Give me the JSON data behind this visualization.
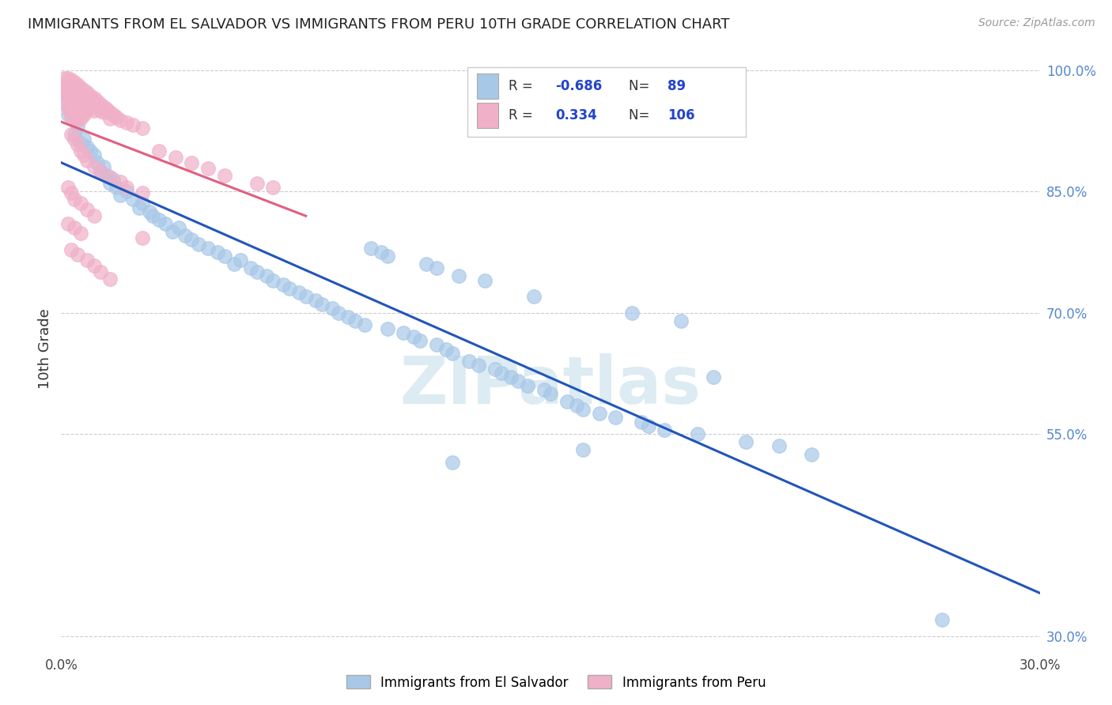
{
  "title": "IMMIGRANTS FROM EL SALVADOR VS IMMIGRANTS FROM PERU 10TH GRADE CORRELATION CHART",
  "source": "Source: ZipAtlas.com",
  "ylabel": "10th Grade",
  "xlim": [
    0.0,
    0.3
  ],
  "ylim": [
    0.28,
    1.03
  ],
  "yticks": [
    0.3,
    0.55,
    0.7,
    0.85,
    1.0
  ],
  "yticklabels": [
    "30.0%",
    "55.0%",
    "70.0%",
    "85.0%",
    "100.0%"
  ],
  "blue_color": "#a8c8e8",
  "pink_color": "#f0b0c8",
  "blue_line_color": "#2255bb",
  "pink_line_color": "#e06080",
  "R_blue": -0.686,
  "N_blue": 89,
  "R_pink": 0.334,
  "N_pink": 106,
  "legend_label_blue": "Immigrants from El Salvador",
  "legend_label_pink": "Immigrants from Peru",
  "watermark": "ZIPatlas",
  "blue_scatter": [
    [
      0.001,
      0.96
    ],
    [
      0.002,
      0.945
    ],
    [
      0.003,
      0.95
    ],
    [
      0.004,
      0.92
    ],
    [
      0.005,
      0.93
    ],
    [
      0.006,
      0.91
    ],
    [
      0.007,
      0.915
    ],
    [
      0.008,
      0.905
    ],
    [
      0.009,
      0.9
    ],
    [
      0.01,
      0.895
    ],
    [
      0.011,
      0.885
    ],
    [
      0.012,
      0.875
    ],
    [
      0.013,
      0.88
    ],
    [
      0.014,
      0.87
    ],
    [
      0.015,
      0.86
    ],
    [
      0.016,
      0.865
    ],
    [
      0.017,
      0.855
    ],
    [
      0.018,
      0.845
    ],
    [
      0.02,
      0.85
    ],
    [
      0.022,
      0.84
    ],
    [
      0.024,
      0.83
    ],
    [
      0.025,
      0.835
    ],
    [
      0.027,
      0.825
    ],
    [
      0.028,
      0.82
    ],
    [
      0.03,
      0.815
    ],
    [
      0.032,
      0.81
    ],
    [
      0.034,
      0.8
    ],
    [
      0.036,
      0.805
    ],
    [
      0.038,
      0.795
    ],
    [
      0.04,
      0.79
    ],
    [
      0.042,
      0.785
    ],
    [
      0.045,
      0.78
    ],
    [
      0.048,
      0.775
    ],
    [
      0.05,
      0.77
    ],
    [
      0.053,
      0.76
    ],
    [
      0.055,
      0.765
    ],
    [
      0.058,
      0.755
    ],
    [
      0.06,
      0.75
    ],
    [
      0.063,
      0.745
    ],
    [
      0.065,
      0.74
    ],
    [
      0.068,
      0.735
    ],
    [
      0.07,
      0.73
    ],
    [
      0.073,
      0.725
    ],
    [
      0.075,
      0.72
    ],
    [
      0.078,
      0.715
    ],
    [
      0.08,
      0.71
    ],
    [
      0.083,
      0.705
    ],
    [
      0.085,
      0.7
    ],
    [
      0.088,
      0.695
    ],
    [
      0.09,
      0.69
    ],
    [
      0.093,
      0.685
    ],
    [
      0.095,
      0.78
    ],
    [
      0.098,
      0.775
    ],
    [
      0.1,
      0.77
    ],
    [
      0.1,
      0.68
    ],
    [
      0.105,
      0.675
    ],
    [
      0.108,
      0.67
    ],
    [
      0.11,
      0.665
    ],
    [
      0.112,
      0.76
    ],
    [
      0.115,
      0.755
    ],
    [
      0.115,
      0.66
    ],
    [
      0.118,
      0.655
    ],
    [
      0.12,
      0.65
    ],
    [
      0.122,
      0.745
    ],
    [
      0.125,
      0.64
    ],
    [
      0.128,
      0.635
    ],
    [
      0.13,
      0.74
    ],
    [
      0.133,
      0.63
    ],
    [
      0.135,
      0.625
    ],
    [
      0.138,
      0.62
    ],
    [
      0.14,
      0.615
    ],
    [
      0.143,
      0.61
    ],
    [
      0.145,
      0.72
    ],
    [
      0.148,
      0.605
    ],
    [
      0.15,
      0.6
    ],
    [
      0.155,
      0.59
    ],
    [
      0.158,
      0.585
    ],
    [
      0.16,
      0.58
    ],
    [
      0.165,
      0.575
    ],
    [
      0.17,
      0.57
    ],
    [
      0.175,
      0.7
    ],
    [
      0.178,
      0.565
    ],
    [
      0.18,
      0.56
    ],
    [
      0.185,
      0.555
    ],
    [
      0.19,
      0.69
    ],
    [
      0.195,
      0.55
    ],
    [
      0.2,
      0.62
    ],
    [
      0.21,
      0.54
    ],
    [
      0.22,
      0.535
    ],
    [
      0.16,
      0.53
    ],
    [
      0.23,
      0.525
    ],
    [
      0.12,
      0.515
    ],
    [
      0.27,
      0.32
    ]
  ],
  "pink_scatter": [
    [
      0.001,
      0.99
    ],
    [
      0.001,
      0.98
    ],
    [
      0.001,
      0.97
    ],
    [
      0.002,
      0.99
    ],
    [
      0.002,
      0.982
    ],
    [
      0.002,
      0.975
    ],
    [
      0.002,
      0.968
    ],
    [
      0.002,
      0.96
    ],
    [
      0.002,
      0.952
    ],
    [
      0.003,
      0.988
    ],
    [
      0.003,
      0.98
    ],
    [
      0.003,
      0.972
    ],
    [
      0.003,
      0.965
    ],
    [
      0.003,
      0.957
    ],
    [
      0.003,
      0.95
    ],
    [
      0.003,
      0.942
    ],
    [
      0.004,
      0.985
    ],
    [
      0.004,
      0.978
    ],
    [
      0.004,
      0.97
    ],
    [
      0.004,
      0.963
    ],
    [
      0.004,
      0.955
    ],
    [
      0.004,
      0.948
    ],
    [
      0.004,
      0.94
    ],
    [
      0.005,
      0.982
    ],
    [
      0.005,
      0.975
    ],
    [
      0.005,
      0.967
    ],
    [
      0.005,
      0.96
    ],
    [
      0.005,
      0.952
    ],
    [
      0.005,
      0.945
    ],
    [
      0.005,
      0.938
    ],
    [
      0.006,
      0.978
    ],
    [
      0.006,
      0.97
    ],
    [
      0.006,
      0.963
    ],
    [
      0.006,
      0.955
    ],
    [
      0.006,
      0.948
    ],
    [
      0.006,
      0.94
    ],
    [
      0.007,
      0.975
    ],
    [
      0.007,
      0.968
    ],
    [
      0.007,
      0.96
    ],
    [
      0.007,
      0.953
    ],
    [
      0.007,
      0.945
    ],
    [
      0.008,
      0.972
    ],
    [
      0.008,
      0.965
    ],
    [
      0.008,
      0.958
    ],
    [
      0.008,
      0.95
    ],
    [
      0.009,
      0.968
    ],
    [
      0.009,
      0.96
    ],
    [
      0.009,
      0.953
    ],
    [
      0.01,
      0.965
    ],
    [
      0.01,
      0.958
    ],
    [
      0.01,
      0.95
    ],
    [
      0.011,
      0.962
    ],
    [
      0.011,
      0.955
    ],
    [
      0.012,
      0.958
    ],
    [
      0.012,
      0.95
    ],
    [
      0.013,
      0.955
    ],
    [
      0.013,
      0.948
    ],
    [
      0.014,
      0.952
    ],
    [
      0.015,
      0.948
    ],
    [
      0.015,
      0.94
    ],
    [
      0.016,
      0.945
    ],
    [
      0.017,
      0.942
    ],
    [
      0.018,
      0.938
    ],
    [
      0.02,
      0.935
    ],
    [
      0.022,
      0.932
    ],
    [
      0.025,
      0.928
    ],
    [
      0.003,
      0.92
    ],
    [
      0.004,
      0.915
    ],
    [
      0.005,
      0.908
    ],
    [
      0.006,
      0.9
    ],
    [
      0.007,
      0.895
    ],
    [
      0.008,
      0.888
    ],
    [
      0.01,
      0.88
    ],
    [
      0.012,
      0.875
    ],
    [
      0.015,
      0.868
    ],
    [
      0.018,
      0.862
    ],
    [
      0.02,
      0.855
    ],
    [
      0.025,
      0.848
    ],
    [
      0.002,
      0.855
    ],
    [
      0.003,
      0.848
    ],
    [
      0.004,
      0.84
    ],
    [
      0.006,
      0.835
    ],
    [
      0.008,
      0.828
    ],
    [
      0.01,
      0.82
    ],
    [
      0.03,
      0.9
    ],
    [
      0.035,
      0.892
    ],
    [
      0.04,
      0.885
    ],
    [
      0.045,
      0.878
    ],
    [
      0.05,
      0.87
    ],
    [
      0.06,
      0.86
    ],
    [
      0.065,
      0.855
    ],
    [
      0.002,
      0.81
    ],
    [
      0.004,
      0.805
    ],
    [
      0.006,
      0.798
    ],
    [
      0.025,
      0.792
    ],
    [
      0.003,
      0.778
    ],
    [
      0.005,
      0.772
    ],
    [
      0.008,
      0.765
    ],
    [
      0.01,
      0.758
    ],
    [
      0.012,
      0.75
    ],
    [
      0.015,
      0.742
    ]
  ]
}
